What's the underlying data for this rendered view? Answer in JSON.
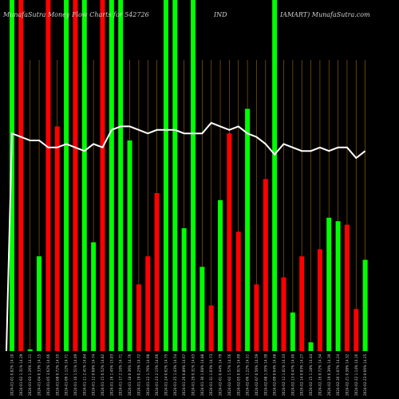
{
  "header": {
    "left": "MunafaSutra  Money Flow  Charts for 542726",
    "middle": "IND",
    "right": "IAMART)  MunafaSutra.com"
  },
  "colors": {
    "background": "#000000",
    "up": "#00ff00",
    "down": "#ff0000",
    "grid": "#8a5a12",
    "line": "#ffffff"
  },
  "chart_data": {
    "type": "bar",
    "title": "MunafaSutra  Money Flow  Charts for 542726",
    "categories": [
      "2024-01-01",
      "2024-01-02",
      "2024-01-03",
      "2024-01-04",
      "2024-01-05",
      "2024-01-08",
      "2024-01-09",
      "2024-01-10",
      "2024-01-11",
      "2024-01-12",
      "2024-01-15",
      "2024-01-16",
      "2024-01-17",
      "2024-01-18",
      "2024-01-19",
      "2024-01-22",
      "2024-01-23",
      "2024-01-24",
      "2024-01-25",
      "2024-01-26",
      "2024-01-29",
      "2024-01-30",
      "2024-01-31",
      "2024-02-01",
      "2024-02-02",
      "2024-02-05",
      "2024-02-06",
      "2024-02-07",
      "2024-02-08",
      "2024-02-09",
      "2024-02-12",
      "2024-02-13",
      "2024-02-14",
      "2024-02-15",
      "2024-02-16",
      "2024-02-19",
      "2024-02-20",
      "2024-02-21",
      "2024-02-22",
      "2024-02-23"
    ],
    "x_tick_labels": [
      "2024-01-01 0.82% 14.10",
      "2024-01-02 1.31% 14.29",
      "2024-01-03 1.26% 14.11",
      "2024-01-04 0.33% 14.15",
      "2024-01-05 3.62% 14.66",
      "2024-01-08 0.72% 14.55",
      "2024-01-09 1.12% 14.71",
      "2024-01-10 1.51% 14.49",
      "2024-01-11 2.41% 14.84",
      "2024-01-12 0.68% 14.74",
      "2024-01-15 0.52% 14.82",
      "2024-01-16 1.45% 15.03",
      "2024-01-17 2.10% 14.71",
      "2024-01-18 0.36% 14.76",
      "2024-01-19 0.25% 14.72",
      "2024-01-22 1.76% 14.98",
      "2024-01-23 2.15% 14.66",
      "2024-01-24 0.62% 14.75",
      "2024-01-25 1.43% 14.54",
      "2024-01-26 0.89% 14.67",
      "2024-01-29 0.31% 14.63",
      "2024-01-30 1.68% 14.88",
      "2024-01-31 1.03% 14.73",
      "2024-02-01 0.44% 14.79",
      "2024-02-02 1.57% 14.56",
      "2024-02-05 0.91% 14.69",
      "2024-02-06 1.22% 14.51",
      "2024-02-07 0.56% 14.59",
      "2024-02-08 1.35% 14.39",
      "2024-02-09 0.64% 14.48",
      "2024-02-12 1.01% 14.33",
      "2024-02-13 0.47% 14.40",
      "2024-02-14 0.93% 14.27",
      "2024-02-15 1.18% 14.44",
      "2024-02-16 0.72% 14.34",
      "2024-02-19 0.39% 14.39",
      "2024-02-20 1.07% 14.24",
      "2024-02-21 0.58% 14.32",
      "2024-02-22 1.14% 14.16",
      "2024-02-23 0.66% 14.25"
    ],
    "series": [
      {
        "kind": "volume_bar",
        "values": [
          100,
          100,
          0.5,
          27,
          100,
          64,
          100,
          100,
          100,
          31,
          100,
          100,
          100,
          60,
          19,
          27,
          45,
          100,
          100,
          35,
          100,
          24,
          13,
          43,
          62,
          34,
          69,
          19,
          49,
          100,
          21,
          11,
          27,
          2.5,
          29,
          38,
          37,
          36,
          12,
          26
        ],
        "direction": [
          "up",
          "down",
          "up",
          "up",
          "down",
          "down",
          "up",
          "down",
          "up",
          "up",
          "down",
          "up",
          "up",
          "up",
          "down",
          "down",
          "down",
          "up",
          "up",
          "up",
          "up",
          "up",
          "down",
          "up",
          "down",
          "down",
          "up",
          "down",
          "down",
          "up",
          "down",
          "up",
          "down",
          "up",
          "down",
          "up",
          "up",
          "down",
          "down",
          "up"
        ]
      },
      {
        "kind": "price_line",
        "values": [
          62,
          61,
          60,
          60,
          58,
          58,
          59,
          58,
          57,
          59,
          58,
          63,
          64,
          64,
          63,
          62,
          63,
          63,
          63,
          62,
          62,
          62,
          65,
          64,
          63,
          64,
          62,
          61,
          59,
          56,
          59,
          58,
          57,
          57,
          58,
          57,
          58,
          58,
          55,
          57
        ]
      }
    ],
    "ylim": [
      0,
      100
    ],
    "grid": "vertical",
    "legend": "none",
    "xlabel": "",
    "ylabel": ""
  }
}
